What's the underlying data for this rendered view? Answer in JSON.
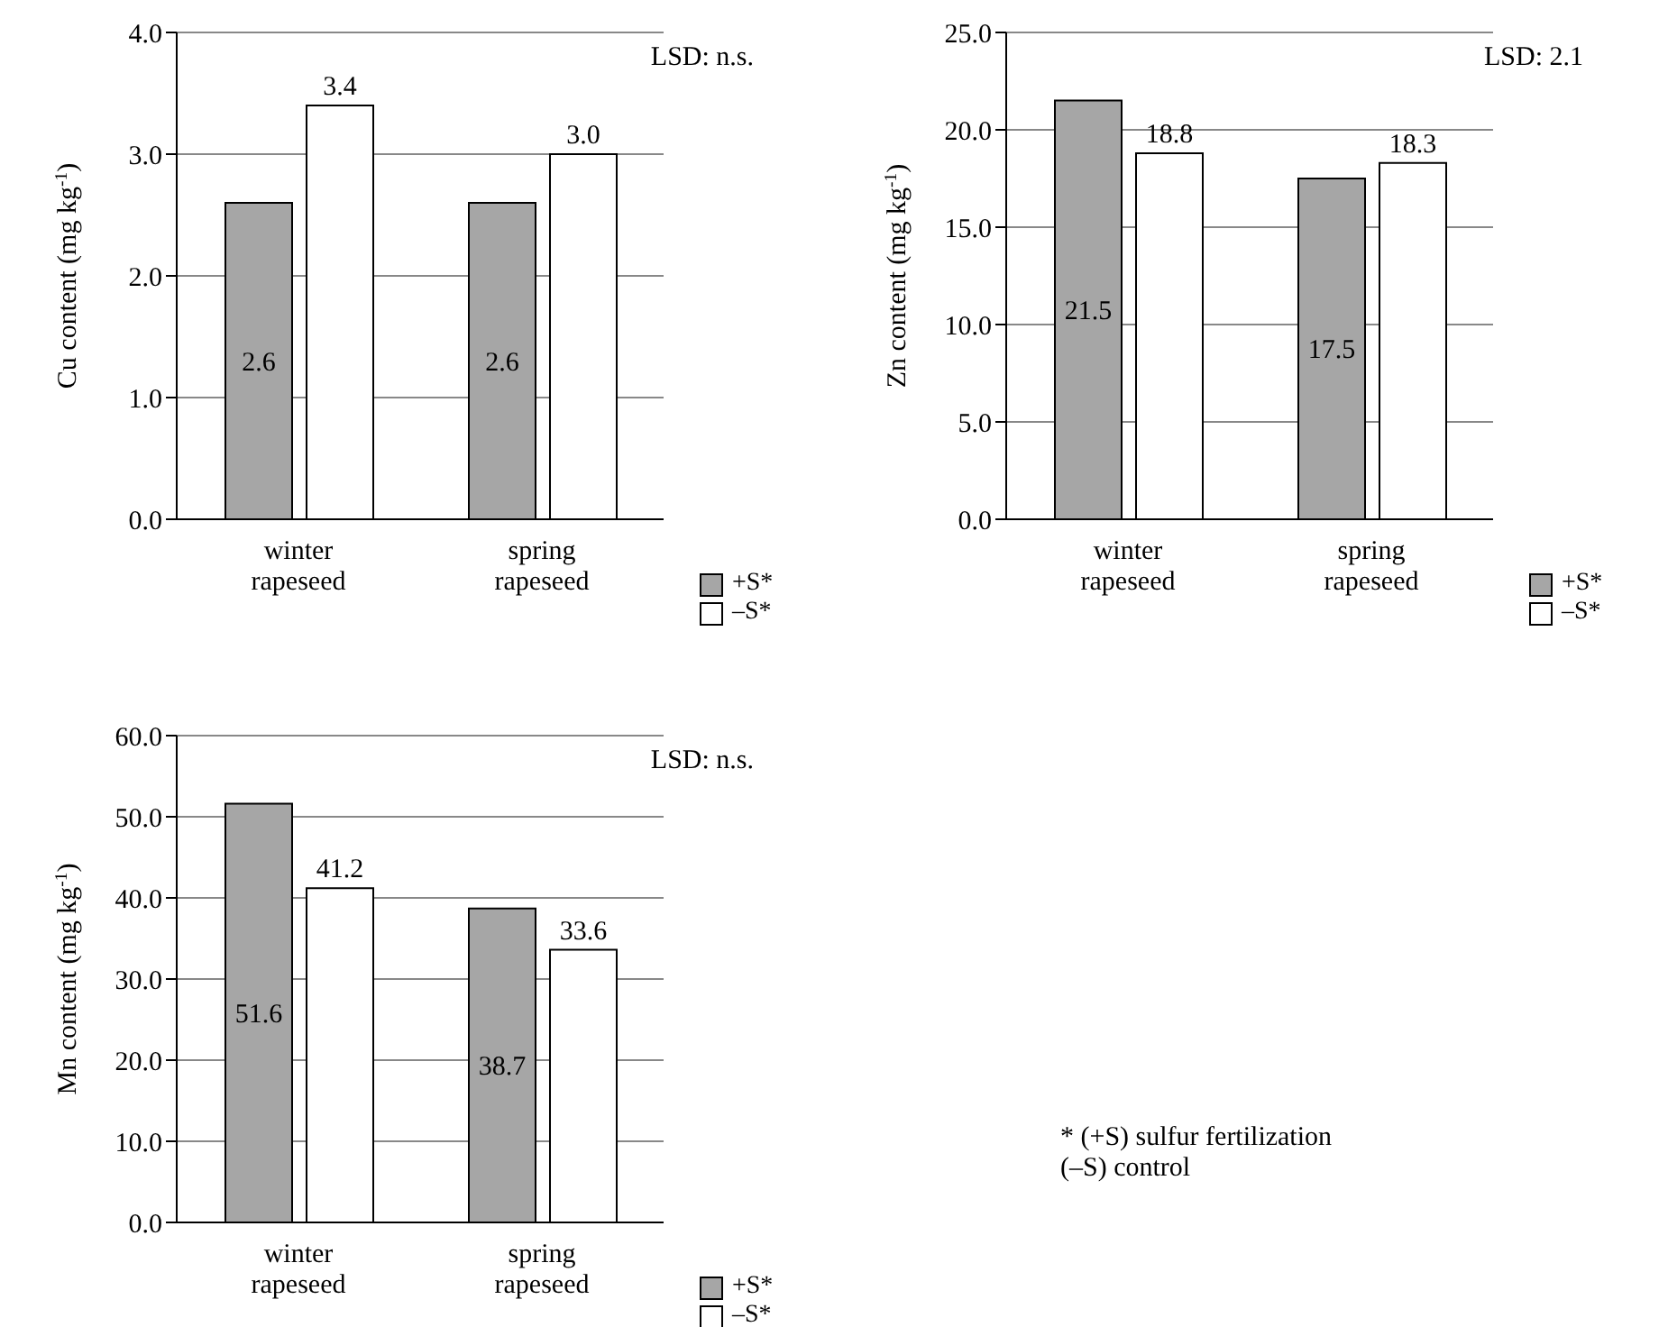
{
  "chart_data": [
    {
      "type": "bar",
      "ylabel": "Cu content (mg kg$^{-1}$)",
      "categories": [
        "winter rapeseed",
        "spring rapeseed"
      ],
      "series": [
        {
          "name": "+S*",
          "color": "#a6a6a6",
          "values": [
            2.6,
            2.6
          ],
          "value_labels": [
            "2.6",
            "2.6"
          ]
        },
        {
          "name": "–S*",
          "color": "#ffffff",
          "values": [
            3.4,
            3.0
          ],
          "value_labels": [
            "3.4",
            "3.0"
          ]
        }
      ],
      "ylim": [
        0,
        4
      ],
      "yticks": [
        {
          "value": 0,
          "label": "0.0"
        },
        {
          "value": 1,
          "label": "1.0"
        },
        {
          "value": 2,
          "label": "2.0"
        },
        {
          "value": 3,
          "label": "3.0"
        },
        {
          "value": 4,
          "label": "4.0"
        }
      ],
      "grid": "y",
      "legend": "bottom right",
      "annotations": [
        "LSD: n.s."
      ]
    },
    {
      "type": "bar",
      "ylabel": "Zn content (mg kg$^{-1}$)",
      "categories": [
        "winter rapeseed",
        "spring rapeseed"
      ],
      "series": [
        {
          "name": "+S*",
          "color": "#a6a6a6",
          "values": [
            21.5,
            17.5
          ],
          "value_labels": [
            "21.5",
            "17.5"
          ]
        },
        {
          "name": "–S*",
          "color": "#ffffff",
          "values": [
            18.8,
            18.3
          ],
          "value_labels": [
            "18.8",
            "18.3"
          ]
        }
      ],
      "ylim": [
        0,
        25
      ],
      "yticks": [
        {
          "value": 0,
          "label": "0.0"
        },
        {
          "value": 5,
          "label": "5.0"
        },
        {
          "value": 10,
          "label": "10.0"
        },
        {
          "value": 15,
          "label": "15.0"
        },
        {
          "value": 20,
          "label": "20.0"
        },
        {
          "value": 25,
          "label": "25.0"
        }
      ],
      "grid": "y",
      "legend": "bottom right",
      "annotations": [
        "LSD: 2.1"
      ]
    },
    {
      "type": "bar",
      "ylabel": "Mn content (mg kg$^{-1}$)",
      "categories": [
        "winter rapeseed",
        "spring rapeseed"
      ],
      "series": [
        {
          "name": "+S*",
          "color": "#a6a6a6",
          "values": [
            51.6,
            38.7
          ],
          "value_labels": [
            "51.6",
            "38.7"
          ]
        },
        {
          "name": "–S*",
          "color": "#ffffff",
          "values": [
            41.2,
            33.6
          ],
          "value_labels": [
            "41.2",
            "33.6"
          ]
        }
      ],
      "ylim": [
        0,
        60
      ],
      "yticks": [
        {
          "value": 0,
          "label": "0.0"
        },
        {
          "value": 10,
          "label": "10.0"
        },
        {
          "value": 20,
          "label": "20.0"
        },
        {
          "value": 30,
          "label": "30.0"
        },
        {
          "value": 40,
          "label": "40.0"
        },
        {
          "value": 50,
          "label": "50.0"
        },
        {
          "value": 60,
          "label": "60.0"
        }
      ],
      "grid": "y",
      "legend": "bottom right",
      "annotations": [
        "LSD: n.s."
      ]
    },
    {
      "type": "other",
      "annotations": [
        "* (+S) sulfur fertilization",
        "(–S) control"
      ]
    }
  ]
}
